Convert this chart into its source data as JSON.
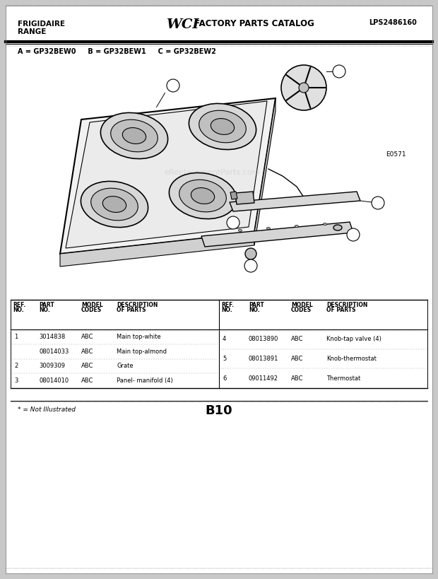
{
  "bg_color": "#c8c8c8",
  "page_bg": "#ffffff",
  "title_left1": "FRIGIDAIRE",
  "title_left2": "RANGE",
  "title_right": "LPS2486160",
  "model_line": "A = GP32BEW0     B = GP32BEW1     C = GP32BEW2",
  "diagram_label": "E0571",
  "footer_note": "* = Not Illustrated",
  "footer_page": "B10",
  "left_rows": [
    [
      "1",
      "3014838",
      "ABC",
      "Main top-white"
    ],
    [
      "",
      "08014033",
      "ABC",
      "Main top-almond"
    ],
    [
      "2",
      "3009309",
      "ABC",
      "Grate"
    ],
    [
      "3",
      "08014010",
      "ABC",
      "Panel- manifold (4)"
    ]
  ],
  "right_rows": [
    [
      "4",
      "08013890",
      "ABC",
      "Knob-tap valve (4)"
    ],
    [
      "5",
      "08013891",
      "ABC",
      "Knob-thermostat"
    ],
    [
      "6",
      "09011492",
      "ABC",
      "Thermostat"
    ]
  ]
}
